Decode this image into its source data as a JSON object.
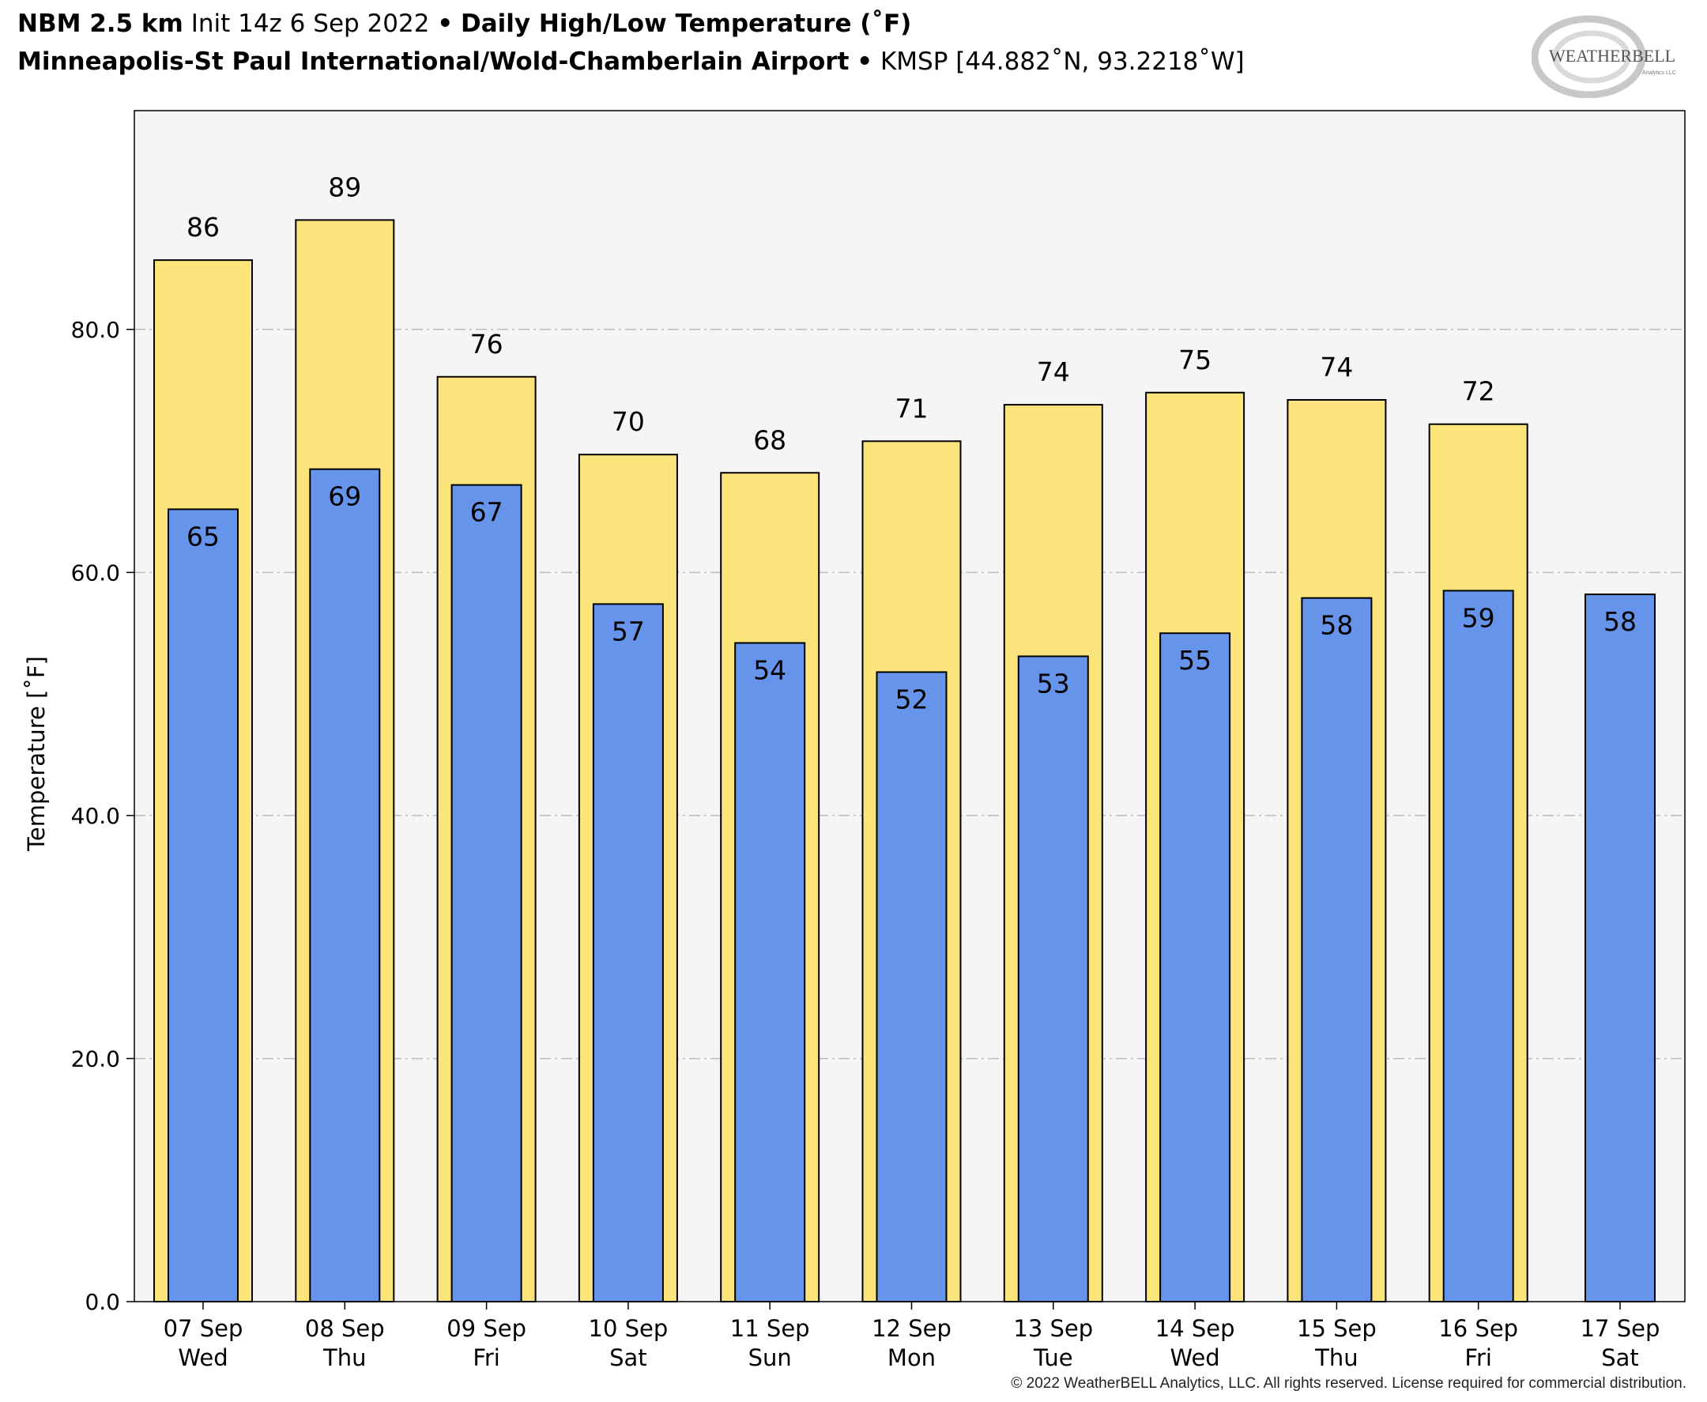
{
  "header": {
    "model": "NBM 2.5 km",
    "init": "Init 14z 6 Sep 2022",
    "bullet": "•",
    "product": "Daily High/Low Temperature (˚F)",
    "station_name": "Minneapolis-St Paul International/Wold-Chamberlain Airport",
    "station_info": "KMSP [44.882˚N, 93.2218˚W]"
  },
  "logo": {
    "text_main": "WEATHERBELL",
    "text_sub": "Analytics LLC"
  },
  "footer": {
    "copyright": "© 2022 WeatherBELL Analytics, LLC. All rights reserved. License required for commercial distribution."
  },
  "chart_data": {
    "type": "bar",
    "title": "Daily High/Low Temperature (˚F)",
    "ylabel": "Temperature [˚F]",
    "ylim": [
      0,
      98
    ],
    "yticks": [
      0,
      20,
      40,
      60,
      80
    ],
    "ytick_labels": [
      "0.0",
      "20.0",
      "40.0",
      "60.0",
      "80.0"
    ],
    "grid": "horizontal dashed",
    "categories": [
      [
        "07 Sep",
        "Wed"
      ],
      [
        "08 Sep",
        "Thu"
      ],
      [
        "09 Sep",
        "Fri"
      ],
      [
        "10 Sep",
        "Sat"
      ],
      [
        "11 Sep",
        "Sun"
      ],
      [
        "12 Sep",
        "Mon"
      ],
      [
        "13 Sep",
        "Tue"
      ],
      [
        "14 Sep",
        "Wed"
      ],
      [
        "15 Sep",
        "Thu"
      ],
      [
        "16 Sep",
        "Fri"
      ],
      [
        "17 Sep",
        "Sat"
      ]
    ],
    "series": [
      {
        "values": [
          85.7,
          89.0,
          76.1,
          69.7,
          68.2,
          70.8,
          73.8,
          74.8,
          74.2,
          72.2,
          null
        ],
        "labels": [
          "86",
          "89",
          "76",
          "70",
          "68",
          "71",
          "74",
          "75",
          "74",
          "72",
          null
        ]
      },
      {
        "values": [
          65.2,
          68.5,
          67.2,
          57.4,
          54.2,
          51.8,
          53.1,
          55.0,
          57.9,
          58.5,
          58.2
        ],
        "labels": [
          "65",
          "69",
          "67",
          "57",
          "54",
          "52",
          "53",
          "55",
          "58",
          "59",
          "58"
        ]
      }
    ],
    "colors": {
      "high": "#FCE47D",
      "low": "#6694EA",
      "plot_bg": "#F6F5F6",
      "grid": "#BBBBBB"
    }
  }
}
